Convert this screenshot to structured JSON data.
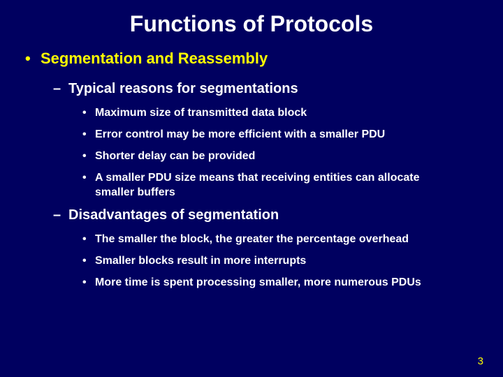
{
  "colors": {
    "background": "#000060",
    "title": "#ffffff",
    "level1": "#ffff00",
    "level2": "#ffffff",
    "level3": "#ffffff",
    "pagenum": "#ffff00"
  },
  "typography": {
    "family": "Arial",
    "title_size_pt": 32,
    "l1_size_pt": 22,
    "l2_size_pt": 20,
    "l3_size_pt": 16,
    "weight": "bold"
  },
  "title": "Functions of Protocols",
  "l1_text": "Segmentation and Reassembly",
  "section1": {
    "heading": "Typical reasons for segmentations",
    "items": [
      "Maximum size of transmitted data block",
      "Error control may be more efficient with a smaller PDU",
      "Shorter delay can be provided",
      "A smaller PDU size means that receiving entities can allocate smaller buffers"
    ]
  },
  "section2": {
    "heading": "Disadvantages of segmentation",
    "items": [
      "The smaller the block, the greater the percentage overhead",
      "Smaller blocks result in more interrupts",
      "More time is spent processing smaller, more numerous PDUs"
    ]
  },
  "page_number": "3"
}
